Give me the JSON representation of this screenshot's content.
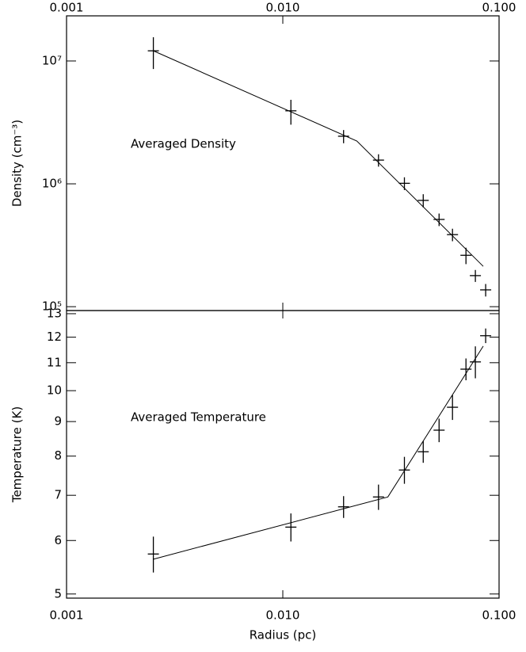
{
  "chart_data": [
    {
      "type": "errorbar",
      "ylabel": "Density (cm⁻³)",
      "annotation": "Averaged Density",
      "xlog": true,
      "ylog": true,
      "color": "#000000",
      "xlim": [
        0.001,
        0.1
      ],
      "xticks": [
        {
          "value": 0.001,
          "label": "0.001"
        },
        {
          "value": 0.01,
          "label": "0.010"
        },
        {
          "value": 0.1,
          "label": "0.100"
        }
      ],
      "ylim": [
        93000,
        23300000
      ],
      "yticks": [
        {
          "value": 100000,
          "label": "10⁵"
        },
        {
          "value": 1000000,
          "label": "10⁶"
        },
        {
          "value": 10000000,
          "label": "10⁷"
        }
      ],
      "series": [
        {
          "x": [
            0.00252,
            0.0109,
            0.0191,
            0.0277,
            0.0365,
            0.0446,
            0.0528,
            0.0609,
            0.0703,
            0.0777,
            0.0867
          ],
          "values": [
            12100000,
            3930000,
            2440000,
            1560000,
            1010000,
            733000,
            513000,
            386000,
            262000,
            179000,
            137000
          ],
          "errors": [
            3500000,
            900000,
            300000,
            180000,
            120000,
            90000,
            60000,
            45000,
            40000,
            20000,
            16000
          ]
        }
      ],
      "fit": {
        "x": [
          0.00252,
          0.022,
          0.0845
        ],
        "values": [
          12100000,
          2230000,
          213000
        ]
      }
    },
    {
      "type": "errorbar",
      "xlabel": "Radius (pc)",
      "ylabel": "Temperature (K)",
      "annotation": "Averaged Temperature",
      "xlog": true,
      "ylog": true,
      "color": "#000000",
      "xlim": [
        0.001,
        0.1
      ],
      "xticks": [
        {
          "value": 0.001,
          "label": "0.001"
        },
        {
          "value": 0.01,
          "label": "0.010"
        },
        {
          "value": 0.1,
          "label": "0.100"
        }
      ],
      "ylim": [
        4.93,
        13.14
      ],
      "yticks": [
        5,
        6,
        7,
        8,
        9,
        10,
        11,
        12,
        13
      ],
      "series": [
        {
          "x": [
            0.00252,
            0.0109,
            0.0191,
            0.0277,
            0.0365,
            0.0446,
            0.0528,
            0.0609,
            0.0703,
            0.0777,
            0.0867
          ],
          "values": [
            5.73,
            6.28,
            6.73,
            6.96,
            7.63,
            8.12,
            8.74,
            9.45,
            10.76,
            11.03,
            12.06
          ],
          "errors": [
            0.35,
            0.3,
            0.25,
            0.3,
            0.35,
            0.3,
            0.35,
            0.4,
            0.4,
            0.6,
            0.3
          ]
        }
      ],
      "fit": {
        "x": [
          0.00252,
          0.0306,
          0.0845
        ],
        "values": [
          5.63,
          6.96,
          11.64
        ]
      }
    }
  ]
}
